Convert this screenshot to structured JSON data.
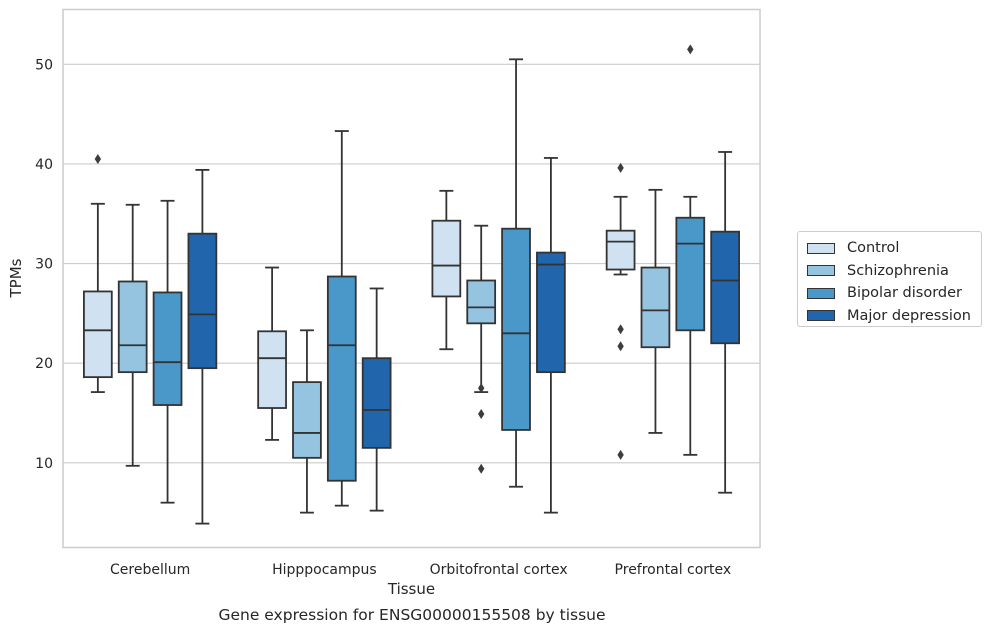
{
  "caption": "Gene expression for ENSG00000155508 by tissue",
  "chart_data": {
    "type": "box",
    "title": "",
    "xlabel": "Tissue",
    "ylabel": "TPMs",
    "ylim": [
      1.5,
      55.5
    ],
    "yticks": [
      10,
      20,
      30,
      40,
      50
    ],
    "grid": "horizontal",
    "legend_position": "right",
    "categories": [
      "Cerebellum",
      "Hipppocampus",
      "Orbitofrontal cortex",
      "Prefrontal cortex"
    ],
    "series": [
      {
        "name": "Control",
        "color": "#d0e1f2",
        "boxes": [
          {
            "whisker_low": 17.1,
            "q1": 18.6,
            "median": 23.3,
            "q3": 27.2,
            "whisker_high": 36.0,
            "outliers": [
              40.5
            ]
          },
          {
            "whisker_low": 12.3,
            "q1": 15.5,
            "median": 20.5,
            "q3": 23.2,
            "whisker_high": 29.6,
            "outliers": []
          },
          {
            "whisker_low": 21.4,
            "q1": 26.7,
            "median": 29.8,
            "q3": 34.3,
            "whisker_high": 37.3,
            "outliers": []
          },
          {
            "whisker_low": 28.9,
            "q1": 29.4,
            "median": 32.2,
            "q3": 33.3,
            "whisker_high": 36.7,
            "outliers": [
              39.6,
              23.4,
              21.7,
              10.8
            ]
          }
        ]
      },
      {
        "name": "Schizophrenia",
        "color": "#94c4df",
        "boxes": [
          {
            "whisker_low": 9.7,
            "q1": 19.1,
            "median": 21.8,
            "q3": 28.2,
            "whisker_high": 35.9,
            "outliers": []
          },
          {
            "whisker_low": 5.0,
            "q1": 10.5,
            "median": 13.0,
            "q3": 18.1,
            "whisker_high": 23.3,
            "outliers": []
          },
          {
            "whisker_low": 17.1,
            "q1": 24.0,
            "median": 25.6,
            "q3": 28.3,
            "whisker_high": 33.8,
            "outliers": [
              17.5,
              14.9,
              9.4
            ]
          },
          {
            "whisker_low": 13.0,
            "q1": 21.6,
            "median": 25.3,
            "q3": 29.6,
            "whisker_high": 37.4,
            "outliers": []
          }
        ]
      },
      {
        "name": "Bipolar disorder",
        "color": "#4a98c9",
        "boxes": [
          {
            "whisker_low": 6.0,
            "q1": 15.8,
            "median": 20.1,
            "q3": 27.1,
            "whisker_high": 36.3,
            "outliers": []
          },
          {
            "whisker_low": 5.7,
            "q1": 8.2,
            "median": 21.8,
            "q3": 28.7,
            "whisker_high": 43.3,
            "outliers": []
          },
          {
            "whisker_low": 7.6,
            "q1": 13.3,
            "median": 23.0,
            "q3": 33.5,
            "whisker_high": 50.5,
            "outliers": []
          },
          {
            "whisker_low": 10.8,
            "q1": 23.3,
            "median": 32.0,
            "q3": 34.6,
            "whisker_high": 36.7,
            "outliers": [
              51.5
            ]
          }
        ]
      },
      {
        "name": "Major depression",
        "color": "#2166ac",
        "boxes": [
          {
            "whisker_low": 3.9,
            "q1": 19.5,
            "median": 24.9,
            "q3": 33.0,
            "whisker_high": 39.4,
            "outliers": []
          },
          {
            "whisker_low": 5.2,
            "q1": 11.5,
            "median": 15.3,
            "q3": 20.5,
            "whisker_high": 27.5,
            "outliers": []
          },
          {
            "whisker_low": 5.0,
            "q1": 19.1,
            "median": 29.9,
            "q3": 31.1,
            "whisker_high": 40.6,
            "outliers": []
          },
          {
            "whisker_low": 7.0,
            "q1": 22.0,
            "median": 28.3,
            "q3": 33.2,
            "whisker_high": 41.2,
            "outliers": []
          }
        ]
      }
    ]
  }
}
